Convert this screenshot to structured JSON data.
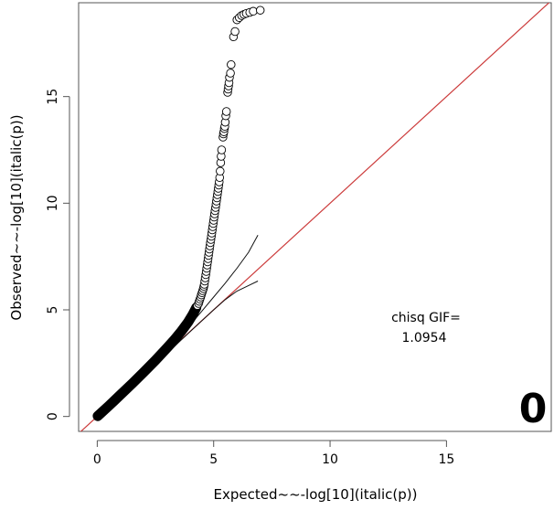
{
  "chart_data": {
    "type": "scatter",
    "title": "",
    "xlabel": "Expected~~-log[10](italic(p))",
    "ylabel": "Observed~~-log[10](italic(p))",
    "xlim": [
      -0.8,
      19.5
    ],
    "ylim": [
      -0.7,
      19.4
    ],
    "x_ticks": [
      0,
      5,
      10,
      15
    ],
    "y_ticks": [
      0,
      5,
      10,
      15
    ],
    "x_tick_labels": [
      "0",
      "5",
      "10",
      "15"
    ],
    "y_tick_labels": [
      "0",
      "5",
      "10",
      "15"
    ],
    "grid": false,
    "legend": "none",
    "annotation_label": "chisq GIF=",
    "annotation_value": "1.0954",
    "panel_label": "0",
    "point_color": "#000000",
    "reference_line_color": "#cc3b3b",
    "dense_segment": {
      "description_values": [
        [
          0.02,
          0.02
        ],
        [
          0.5,
          0.5
        ],
        [
          1.0,
          1.02
        ],
        [
          1.5,
          1.54
        ],
        [
          2.0,
          2.08
        ],
        [
          2.5,
          2.63
        ],
        [
          3.0,
          3.22
        ],
        [
          3.3,
          3.58
        ],
        [
          3.6,
          3.98
        ],
        [
          3.9,
          4.42
        ],
        [
          4.1,
          4.78
        ],
        [
          4.25,
          5.1
        ]
      ]
    },
    "series": [
      {
        "values": [
          [
            4.3,
            5.2
          ],
          [
            4.35,
            5.3
          ],
          [
            4.38,
            5.4
          ],
          [
            4.41,
            5.5
          ],
          [
            4.44,
            5.6
          ],
          [
            4.47,
            5.7
          ],
          [
            4.5,
            5.8
          ],
          [
            4.53,
            5.9
          ],
          [
            4.56,
            6.0
          ],
          [
            4.58,
            6.1
          ],
          [
            4.6,
            6.2
          ],
          [
            4.62,
            6.35
          ],
          [
            4.64,
            6.5
          ],
          [
            4.66,
            6.65
          ],
          [
            4.68,
            6.8
          ],
          [
            4.7,
            6.95
          ],
          [
            4.72,
            7.1
          ],
          [
            4.74,
            7.25
          ],
          [
            4.76,
            7.4
          ],
          [
            4.78,
            7.55
          ],
          [
            4.8,
            7.7
          ],
          [
            4.82,
            7.85
          ],
          [
            4.84,
            8.0
          ],
          [
            4.86,
            8.15
          ],
          [
            4.88,
            8.3
          ],
          [
            4.9,
            8.45
          ],
          [
            4.92,
            8.6
          ],
          [
            4.94,
            8.75
          ],
          [
            4.96,
            8.9
          ],
          [
            4.98,
            9.05
          ],
          [
            5.0,
            9.2
          ],
          [
            5.02,
            9.35
          ],
          [
            5.04,
            9.5
          ],
          [
            5.06,
            9.65
          ],
          [
            5.08,
            9.8
          ],
          [
            5.1,
            9.95
          ],
          [
            5.12,
            10.1
          ],
          [
            5.14,
            10.25
          ],
          [
            5.16,
            10.4
          ],
          [
            5.18,
            10.55
          ],
          [
            5.2,
            10.7
          ],
          [
            5.22,
            10.85
          ],
          [
            5.24,
            11.0
          ],
          [
            5.26,
            11.2
          ],
          [
            5.28,
            11.5
          ],
          [
            5.3,
            11.9
          ],
          [
            5.32,
            12.2
          ],
          [
            5.34,
            12.5
          ],
          [
            5.4,
            13.1
          ],
          [
            5.42,
            13.25
          ],
          [
            5.44,
            13.35
          ],
          [
            5.46,
            13.5
          ],
          [
            5.48,
            13.6
          ],
          [
            5.5,
            13.8
          ],
          [
            5.52,
            14.1
          ],
          [
            5.55,
            14.3
          ],
          [
            5.6,
            15.2
          ],
          [
            5.62,
            15.35
          ],
          [
            5.64,
            15.5
          ],
          [
            5.66,
            15.65
          ],
          [
            5.68,
            15.9
          ],
          [
            5.72,
            16.1
          ],
          [
            5.75,
            16.5
          ],
          [
            5.85,
            17.8
          ],
          [
            5.92,
            18.05
          ],
          [
            6.0,
            18.6
          ],
          [
            6.1,
            18.7
          ],
          [
            6.2,
            18.8
          ],
          [
            6.3,
            18.85
          ],
          [
            6.4,
            18.9
          ],
          [
            6.55,
            18.95
          ],
          [
            6.7,
            19.0
          ],
          [
            7.0,
            19.05
          ]
        ]
      }
    ],
    "reference_line": [
      [
        -0.8,
        -0.8
      ],
      [
        19.5,
        19.5
      ]
    ],
    "upper_band": [
      [
        2.5,
        2.55
      ],
      [
        3.0,
        3.1
      ],
      [
        3.5,
        3.7
      ],
      [
        4.0,
        4.3
      ],
      [
        4.5,
        4.95
      ],
      [
        5.0,
        5.6
      ],
      [
        5.5,
        6.25
      ],
      [
        6.0,
        6.95
      ],
      [
        6.5,
        7.7
      ],
      [
        6.9,
        8.5
      ]
    ],
    "lower_band": [
      [
        2.5,
        2.45
      ],
      [
        3.0,
        2.95
      ],
      [
        3.5,
        3.48
      ],
      [
        4.0,
        3.99
      ],
      [
        4.5,
        4.5
      ],
      [
        5.0,
        5.0
      ],
      [
        5.5,
        5.48
      ],
      [
        6.0,
        5.88
      ],
      [
        6.5,
        6.14
      ],
      [
        6.9,
        6.35
      ]
    ]
  }
}
